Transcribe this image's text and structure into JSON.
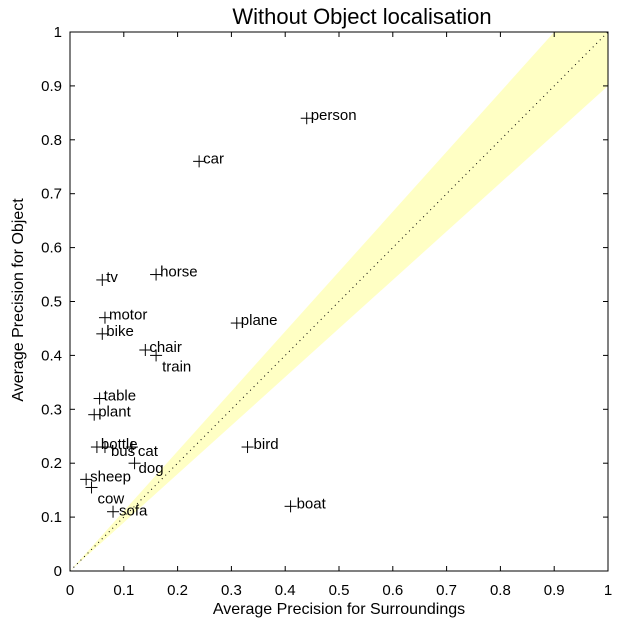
{
  "chart_data": {
    "type": "scatter",
    "title": "Without Object localisation",
    "xlabel": "Average Precision for Surroundings",
    "ylabel": "Average Precision for Object",
    "xlim": [
      0,
      1
    ],
    "ylim": [
      0,
      1
    ],
    "x_ticks": [
      "0",
      "0.1",
      "0.2",
      "0.3",
      "0.4",
      "0.5",
      "0.6",
      "0.7",
      "0.8",
      "0.9",
      "1"
    ],
    "y_ticks": [
      "0",
      "0.1",
      "0.2",
      "0.3",
      "0.4",
      "0.5",
      "0.6",
      "0.7",
      "0.8",
      "0.9",
      "1"
    ],
    "grid": false,
    "diagonal_reference_line": true,
    "confidence_band_color": "#ffffc4",
    "marker": "plus",
    "points": [
      {
        "label": "person",
        "x": 0.44,
        "y": 0.84
      },
      {
        "label": "car",
        "x": 0.24,
        "y": 0.76
      },
      {
        "label": "tv",
        "x": 0.06,
        "y": 0.54
      },
      {
        "label": "horse",
        "x": 0.16,
        "y": 0.55
      },
      {
        "label": "motor",
        "x": 0.065,
        "y": 0.47
      },
      {
        "label": "bike",
        "x": 0.06,
        "y": 0.44
      },
      {
        "label": "plane",
        "x": 0.31,
        "y": 0.46
      },
      {
        "label": "chair",
        "x": 0.14,
        "y": 0.41
      },
      {
        "label": "train",
        "x": 0.16,
        "y": 0.4
      },
      {
        "label": "table",
        "x": 0.055,
        "y": 0.32
      },
      {
        "label": "plant",
        "x": 0.045,
        "y": 0.29
      },
      {
        "label": "bottle",
        "x": 0.05,
        "y": 0.23
      },
      {
        "label": "bird",
        "x": 0.33,
        "y": 0.23
      },
      {
        "label": "bus",
        "x": 0.065,
        "y": 0.23
      },
      {
        "label": "cat",
        "x": 0.115,
        "y": 0.23
      },
      {
        "label": "sheep",
        "x": 0.03,
        "y": 0.17
      },
      {
        "label": "dog",
        "x": 0.12,
        "y": 0.2
      },
      {
        "label": "cow",
        "x": 0.04,
        "y": 0.155
      },
      {
        "label": "sofa",
        "x": 0.08,
        "y": 0.11
      },
      {
        "label": "boat",
        "x": 0.41,
        "y": 0.12
      }
    ]
  }
}
